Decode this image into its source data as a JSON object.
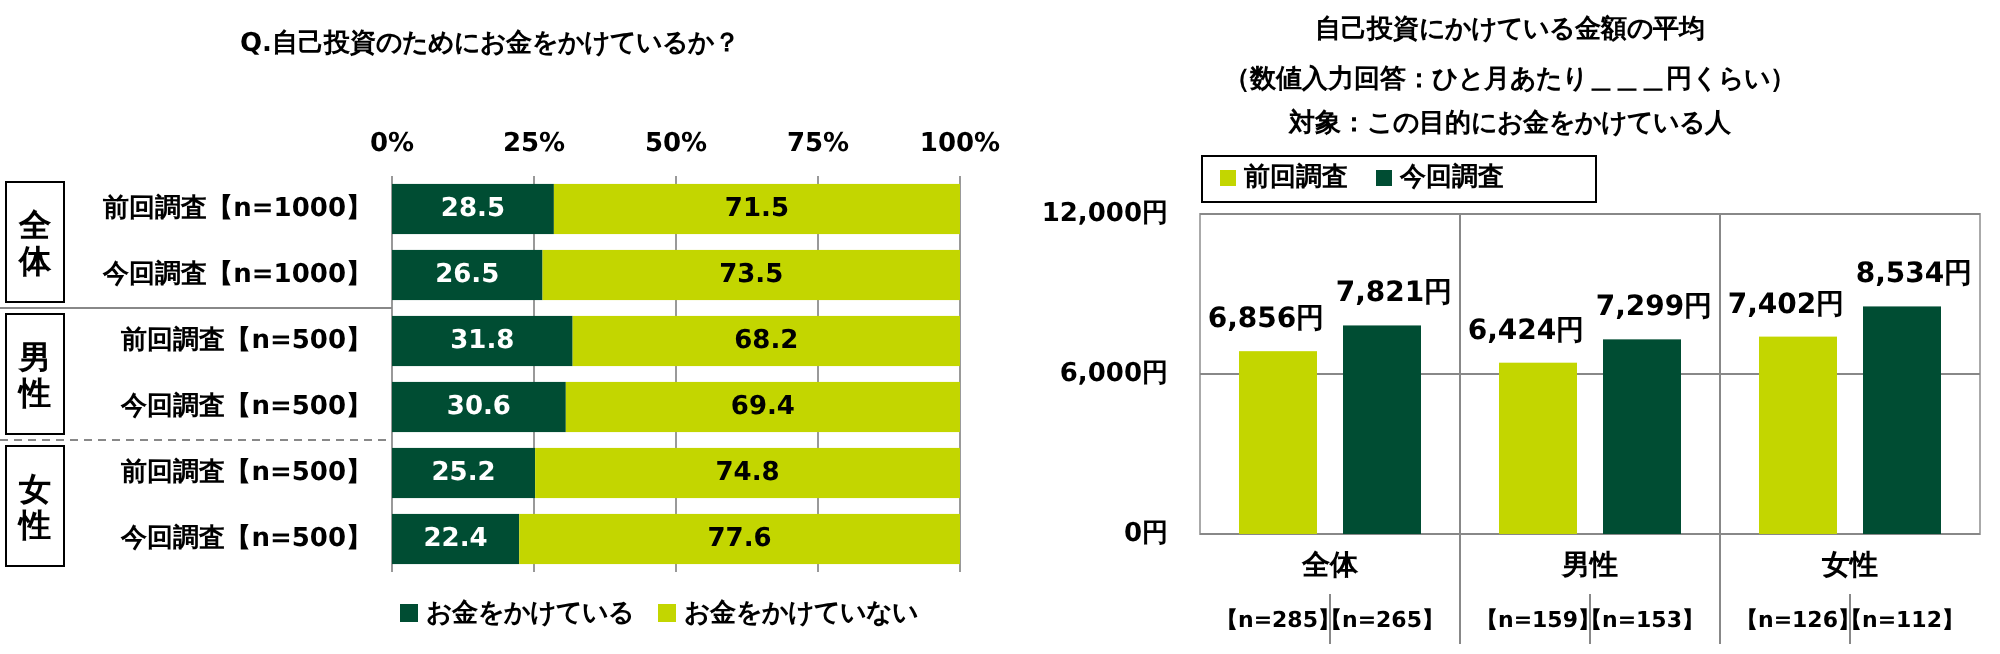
{
  "chart_data": [
    {
      "type": "bar",
      "title": "Q.自己投資のためにお金をかけているか？",
      "orientation": "horizontal",
      "stacked": true,
      "data_labels": true,
      "grid": "x",
      "legend": "bottom",
      "categories": [
        "前回調査【n=1000】",
        "今回調査【n=1000】",
        "前回調査【n=500】",
        "今回調査【n=500】",
        "前回調査【n=500】",
        "今回調査【n=500】"
      ],
      "series": [
        {
          "name": "お金をかけている",
          "color": "#004d33",
          "values": [
            28.5,
            26.5,
            31.8,
            30.6,
            25.2,
            22.4
          ]
        },
        {
          "name": "お金をかけていない",
          "color": "#c3d600",
          "values": [
            71.5,
            73.5,
            68.2,
            69.4,
            74.8,
            77.6
          ]
        }
      ],
      "xlim": [
        0,
        100
      ],
      "xticks": [
        {
          "value": 0,
          "label": "0%"
        },
        {
          "value": 25,
          "label": "25%"
        },
        {
          "value": 50,
          "label": "50%"
        },
        {
          "value": 75,
          "label": "75%"
        },
        {
          "value": 100,
          "label": "100%"
        }
      ],
      "annotations": [
        "全体",
        "男性",
        "女性"
      ]
    },
    {
      "type": "bar",
      "title": "自己投資にかけている金額の平均",
      "subtitle": "（数値入力回答：ひと月あたり＿＿＿円くらい）",
      "grid": "y",
      "legend": "top left",
      "categories": [
        "全体",
        "男性",
        "女性"
      ],
      "series": [
        {
          "name": "前回調査",
          "color": "#c3d600",
          "values": [
            6856,
            6424,
            7402
          ],
          "value_labels": [
            "6,856円",
            "6,424円",
            "7,402円"
          ]
        },
        {
          "name": "今回調査",
          "color": "#004d33",
          "values": [
            7821,
            7299,
            8534
          ],
          "value_labels": [
            "7,821円",
            "7,299円",
            "8,534円"
          ]
        }
      ],
      "ylim": [
        0,
        12000
      ],
      "yticks": [
        {
          "value": 0,
          "label": "0円"
        },
        {
          "value": 6000,
          "label": "6,000円"
        },
        {
          "value": 12000,
          "label": "12,000円"
        }
      ],
      "annotations": [
        "対象：この目的にお金をかけている人",
        "【n=285】",
        "【n=265】",
        "【n=159】",
        "【n=153】",
        "【n=126】",
        "【n=112】"
      ]
    }
  ]
}
